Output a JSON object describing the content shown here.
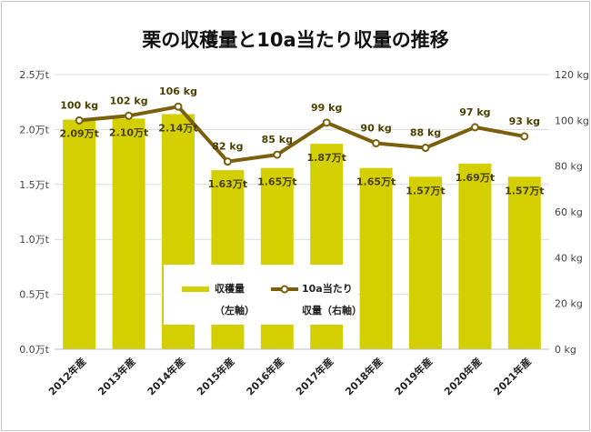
{
  "title": "栗の収穫量と10a当たり収量の推移",
  "colors": {
    "bar": "#d4cf00",
    "line": "#7a5f0c",
    "grid": "#dcdcdc",
    "label": "#4a4000"
  },
  "legend": {
    "bar_line1": "収穫量",
    "bar_line2": "（左軸）",
    "line_line1": "10a当たり",
    "line_line2": "収量（右軸）"
  },
  "chart_data": {
    "type": "bar",
    "title": "栗の収穫量と10a当たり収量の推移",
    "categories": [
      "2012年産",
      "2013年産",
      "2014年産",
      "2015年産",
      "2016年産",
      "2017年産",
      "2018年産",
      "2019年産",
      "2020年産",
      "2021年産"
    ],
    "series": [
      {
        "name": "収穫量（左軸）",
        "type": "bar",
        "axis": "left",
        "unit": "万t",
        "values": [
          2.09,
          2.1,
          2.14,
          1.63,
          1.65,
          1.87,
          1.65,
          1.57,
          1.69,
          1.57
        ],
        "labels": [
          "2.09万t",
          "2.10万t",
          "2.14万t",
          "1.63万t",
          "1.65万t",
          "1.87万t",
          "1.65万t",
          "1.57万t",
          "1.69万t",
          "1.57万t"
        ]
      },
      {
        "name": "10a当たり収量（右軸）",
        "type": "line",
        "axis": "right",
        "unit": "kg",
        "values": [
          100,
          102,
          106,
          82,
          85,
          99,
          90,
          88,
          97,
          93
        ],
        "labels": [
          "100 kg",
          "102 kg",
          "106 kg",
          "82 kg",
          "85 kg",
          "99 kg",
          "90 kg",
          "88 kg",
          "97 kg",
          "93 kg"
        ]
      }
    ],
    "y_left": {
      "min": 0,
      "max": 2.5,
      "step": 0.5,
      "tick_labels": [
        "0.0万t",
        "0.5万t",
        "1.0万t",
        "1.5万t",
        "2.0万t",
        "2.5万t"
      ]
    },
    "y_right": {
      "min": 0,
      "max": 120,
      "step": 20,
      "tick_labels": [
        "0 kg",
        "20 kg",
        "40 kg",
        "60 kg",
        "80 kg",
        "100 kg",
        "120 kg"
      ]
    },
    "grid": true,
    "legend_position": "bottom-center"
  }
}
